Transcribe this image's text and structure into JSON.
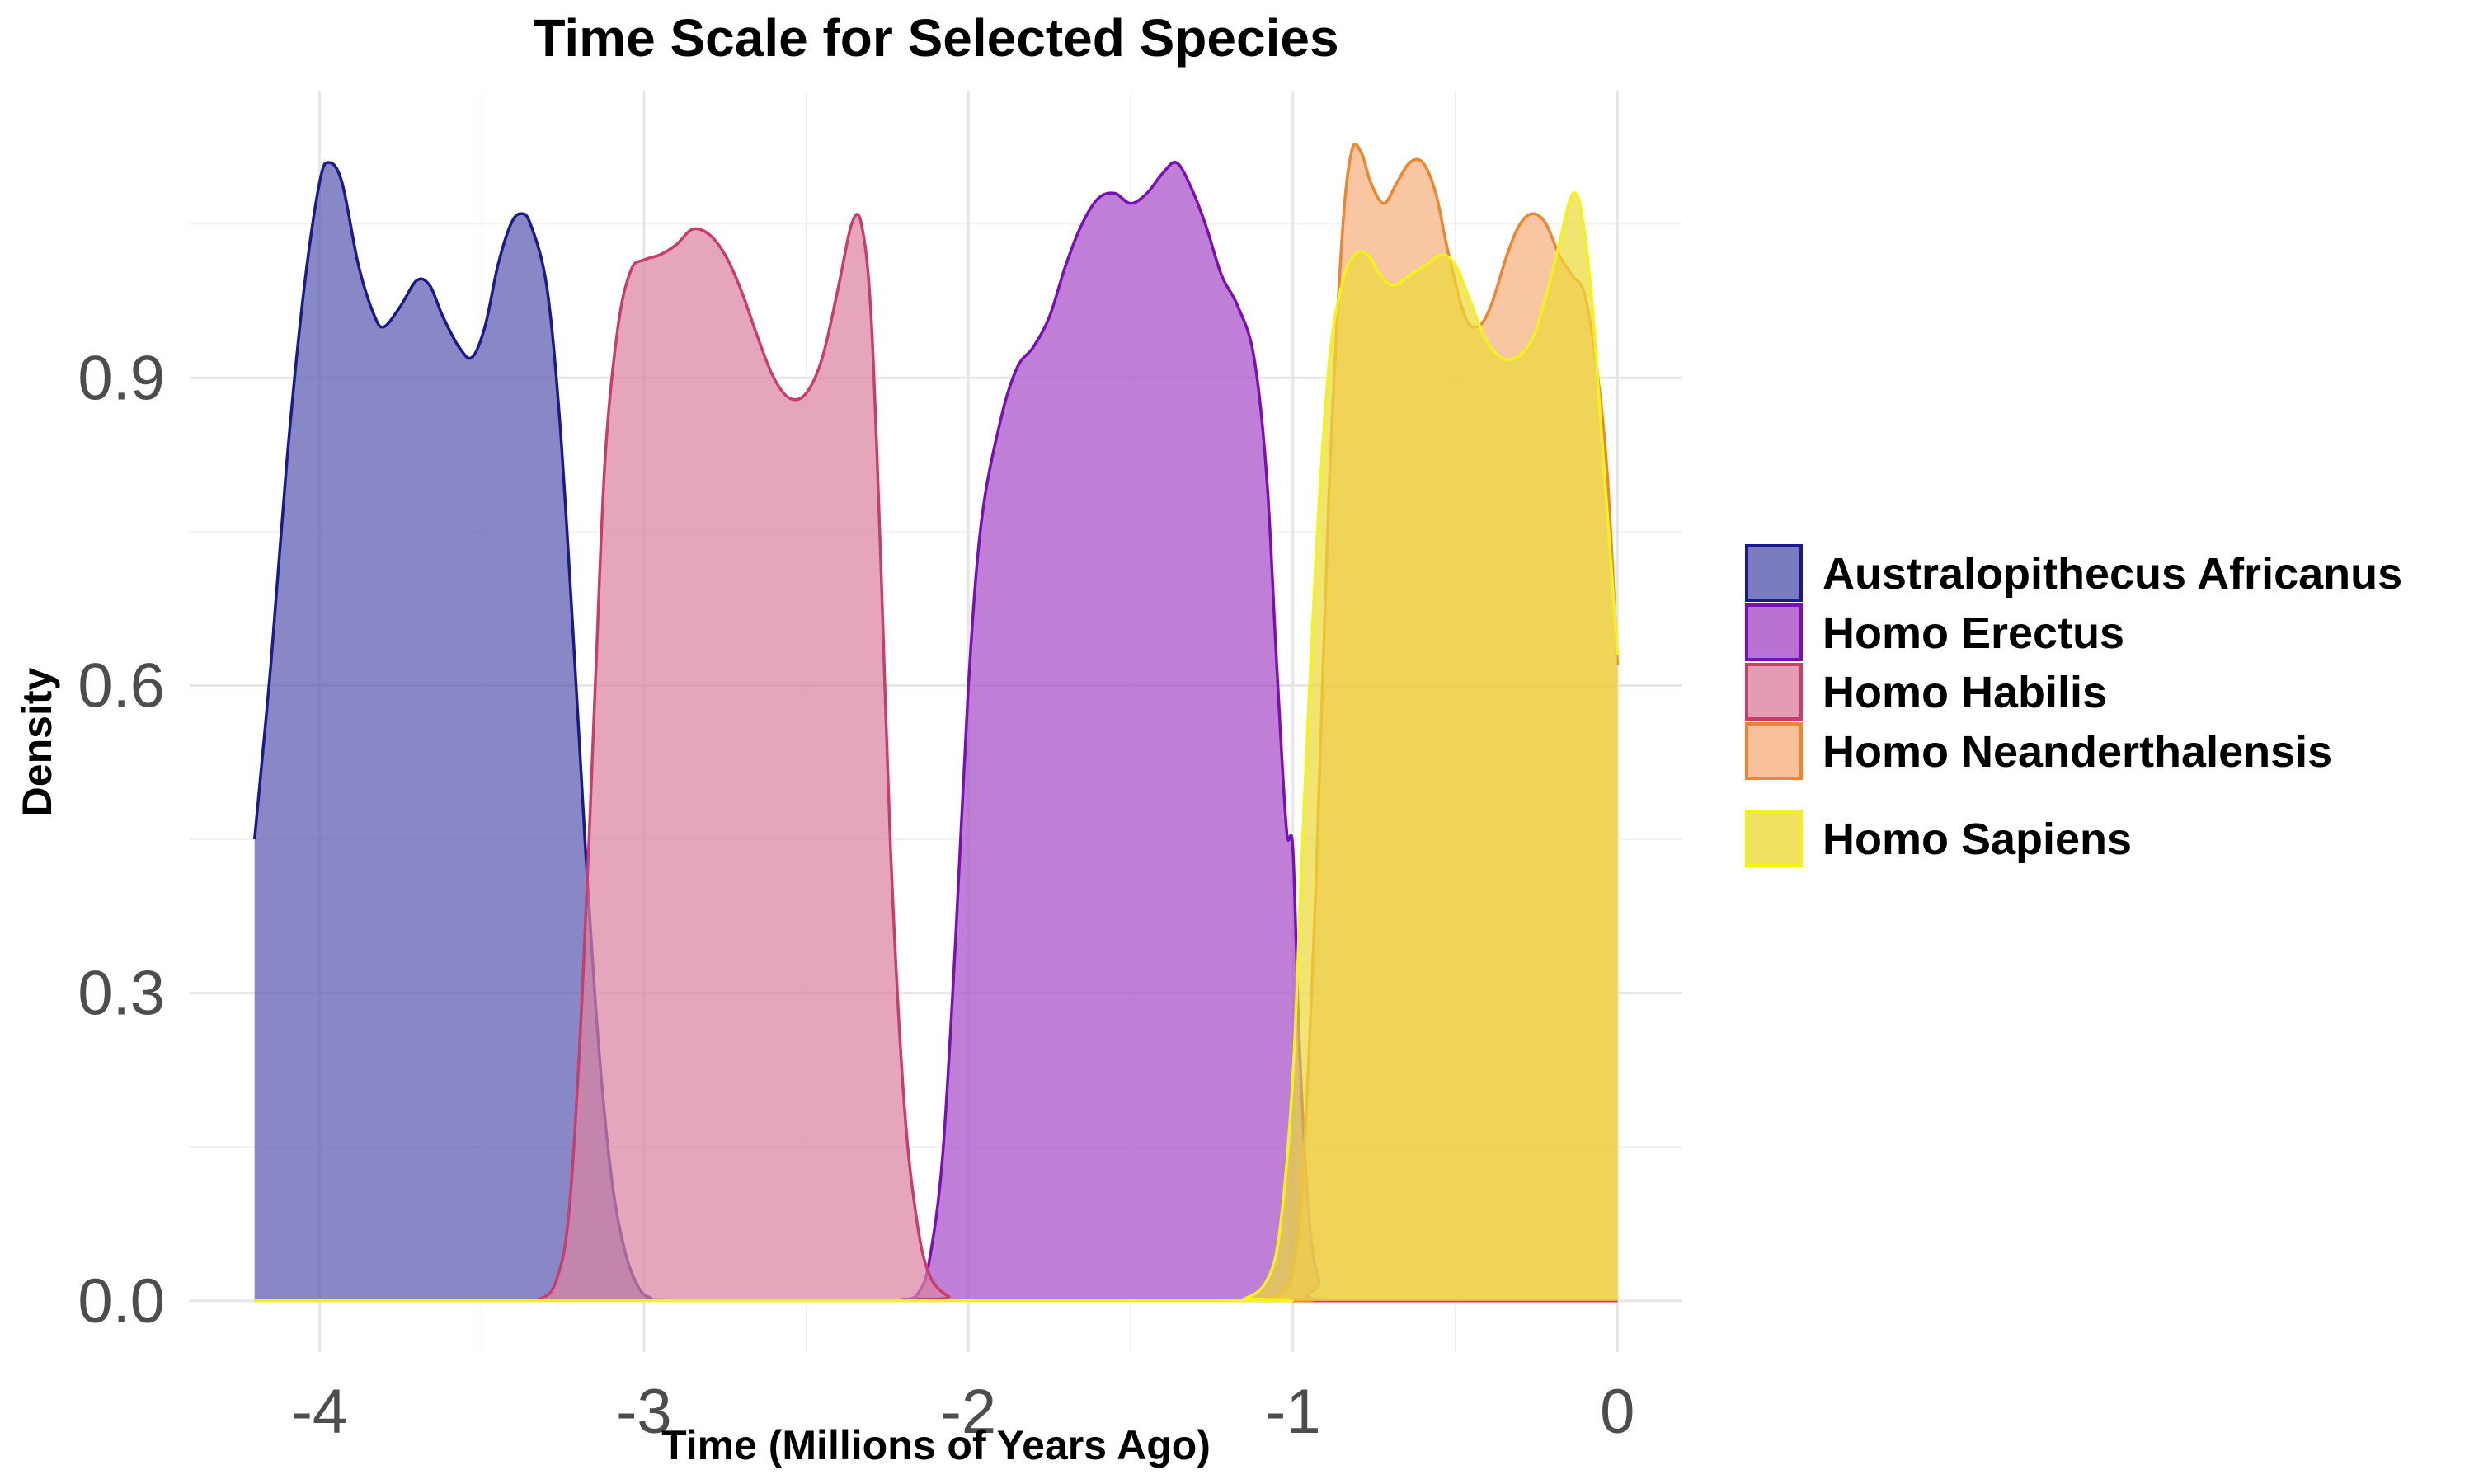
{
  "chart_data": {
    "type": "area",
    "title": "Time Scale for Selected Species",
    "xlabel": "Time (Millions of Years Ago)",
    "ylabel": "Density",
    "xlim": [
      -4.4,
      0.2
    ],
    "ylim": [
      -0.05,
      1.18
    ],
    "x_ticks": [
      -4,
      -3,
      -2,
      -1,
      0
    ],
    "x_tick_labels": [
      "-4",
      "-3",
      "-2",
      "-1",
      "0"
    ],
    "y_ticks": [
      0.0,
      0.3,
      0.6,
      0.9
    ],
    "y_tick_labels": [
      "0.0",
      "0.3",
      "0.6",
      "0.9"
    ],
    "grid": true,
    "legend_position": "right",
    "series": [
      {
        "name": "Australopithecus Africanus",
        "color": "#1a1a8c",
        "fill": "#5a5ab0",
        "points": [
          [
            -4.2,
            0.45
          ],
          [
            -4.15,
            0.62
          ],
          [
            -4.1,
            0.82
          ],
          [
            -4.05,
            0.98
          ],
          [
            -4.0,
            1.09
          ],
          [
            -3.97,
            1.11
          ],
          [
            -3.93,
            1.09
          ],
          [
            -3.88,
            1.01
          ],
          [
            -3.83,
            0.96
          ],
          [
            -3.8,
            0.95
          ],
          [
            -3.75,
            0.97
          ],
          [
            -3.7,
            0.995
          ],
          [
            -3.66,
            0.99
          ],
          [
            -3.62,
            0.96
          ],
          [
            -3.57,
            0.93
          ],
          [
            -3.53,
            0.92
          ],
          [
            -3.49,
            0.95
          ],
          [
            -3.45,
            1.01
          ],
          [
            -3.41,
            1.05
          ],
          [
            -3.38,
            1.06
          ],
          [
            -3.35,
            1.05
          ],
          [
            -3.3,
            0.99
          ],
          [
            -3.26,
            0.86
          ],
          [
            -3.22,
            0.66
          ],
          [
            -3.18,
            0.44
          ],
          [
            -3.14,
            0.25
          ],
          [
            -3.1,
            0.12
          ],
          [
            -3.06,
            0.05
          ],
          [
            -3.02,
            0.015
          ],
          [
            -2.98,
            0.003
          ],
          [
            -2.9,
            0.0
          ],
          [
            -2.0,
            0.0
          ],
          [
            0.0,
            0.0
          ]
        ]
      },
      {
        "name": "Homo Erectus",
        "color": "#7a0fb5",
        "fill": "#a84ec8",
        "points": [
          [
            -4.2,
            0.0
          ],
          [
            -2.4,
            0.0
          ],
          [
            -2.2,
            0.001
          ],
          [
            -2.15,
            0.01
          ],
          [
            -2.12,
            0.04
          ],
          [
            -2.08,
            0.14
          ],
          [
            -2.04,
            0.35
          ],
          [
            -2.0,
            0.6
          ],
          [
            -1.96,
            0.76
          ],
          [
            -1.9,
            0.86
          ],
          [
            -1.85,
            0.91
          ],
          [
            -1.8,
            0.93
          ],
          [
            -1.75,
            0.96
          ],
          [
            -1.7,
            1.01
          ],
          [
            -1.65,
            1.05
          ],
          [
            -1.6,
            1.075
          ],
          [
            -1.55,
            1.08
          ],
          [
            -1.5,
            1.07
          ],
          [
            -1.45,
            1.08
          ],
          [
            -1.4,
            1.1
          ],
          [
            -1.36,
            1.11
          ],
          [
            -1.32,
            1.09
          ],
          [
            -1.27,
            1.05
          ],
          [
            -1.22,
            1.0
          ],
          [
            -1.17,
            0.97
          ],
          [
            -1.12,
            0.92
          ],
          [
            -1.08,
            0.8
          ],
          [
            -1.05,
            0.62
          ],
          [
            -1.02,
            0.46
          ],
          [
            -1.0,
            0.44
          ],
          [
            -0.98,
            0.25
          ],
          [
            -0.95,
            0.08
          ],
          [
            -0.92,
            0.02
          ],
          [
            -0.88,
            0.0
          ],
          [
            0.0,
            0.0
          ]
        ]
      },
      {
        "name": "Homo Habilis",
        "color": "#c83c6e",
        "fill": "#db84a2",
        "points": [
          [
            -4.2,
            0.0
          ],
          [
            -3.4,
            0.0
          ],
          [
            -3.32,
            0.002
          ],
          [
            -3.27,
            0.02
          ],
          [
            -3.23,
            0.09
          ],
          [
            -3.19,
            0.3
          ],
          [
            -3.15,
            0.6
          ],
          [
            -3.12,
            0.82
          ],
          [
            -3.08,
            0.95
          ],
          [
            -3.04,
            1.005
          ],
          [
            -3.0,
            1.015
          ],
          [
            -2.95,
            1.02
          ],
          [
            -2.9,
            1.03
          ],
          [
            -2.85,
            1.045
          ],
          [
            -2.8,
            1.04
          ],
          [
            -2.75,
            1.02
          ],
          [
            -2.7,
            0.985
          ],
          [
            -2.65,
            0.94
          ],
          [
            -2.6,
            0.9
          ],
          [
            -2.55,
            0.88
          ],
          [
            -2.5,
            0.885
          ],
          [
            -2.45,
            0.92
          ],
          [
            -2.4,
            0.99
          ],
          [
            -2.36,
            1.05
          ],
          [
            -2.33,
            1.05
          ],
          [
            -2.3,
            0.96
          ],
          [
            -2.27,
            0.72
          ],
          [
            -2.24,
            0.44
          ],
          [
            -2.2,
            0.2
          ],
          [
            -2.16,
            0.08
          ],
          [
            -2.12,
            0.025
          ],
          [
            -2.06,
            0.004
          ],
          [
            -2.0,
            0.0
          ],
          [
            0.0,
            0.0
          ]
        ]
      },
      {
        "name": "Homo Neanderthalensis",
        "color": "#ee8530",
        "fill": "#f6b07e",
        "points": [
          [
            -4.2,
            0.0
          ],
          [
            -1.2,
            0.0
          ],
          [
            -1.08,
            0.002
          ],
          [
            -1.03,
            0.01
          ],
          [
            -1.0,
            0.03
          ],
          [
            -0.97,
            0.12
          ],
          [
            -0.93,
            0.4
          ],
          [
            -0.89,
            0.78
          ],
          [
            -0.85,
            1.03
          ],
          [
            -0.82,
            1.12
          ],
          [
            -0.79,
            1.12
          ],
          [
            -0.76,
            1.09
          ],
          [
            -0.72,
            1.07
          ],
          [
            -0.68,
            1.09
          ],
          [
            -0.64,
            1.11
          ],
          [
            -0.6,
            1.11
          ],
          [
            -0.56,
            1.08
          ],
          [
            -0.52,
            1.02
          ],
          [
            -0.47,
            0.96
          ],
          [
            -0.43,
            0.95
          ],
          [
            -0.39,
            0.97
          ],
          [
            -0.34,
            1.02
          ],
          [
            -0.3,
            1.05
          ],
          [
            -0.26,
            1.06
          ],
          [
            -0.22,
            1.05
          ],
          [
            -0.18,
            1.02
          ],
          [
            -0.14,
            1.0
          ],
          [
            -0.1,
            0.98
          ],
          [
            -0.06,
            0.9
          ],
          [
            -0.03,
            0.8
          ],
          [
            0.0,
            0.62
          ]
        ]
      },
      {
        "name": "Homo Sapiens",
        "color": "#f2f21e",
        "fill": "#ecd93a",
        "points": [
          [
            -4.2,
            0.0
          ],
          [
            -1.25,
            0.0
          ],
          [
            -1.15,
            0.002
          ],
          [
            -1.08,
            0.02
          ],
          [
            -1.04,
            0.07
          ],
          [
            -1.0,
            0.22
          ],
          [
            -0.97,
            0.45
          ],
          [
            -0.93,
            0.72
          ],
          [
            -0.89,
            0.91
          ],
          [
            -0.85,
            0.99
          ],
          [
            -0.81,
            1.02
          ],
          [
            -0.77,
            1.02
          ],
          [
            -0.73,
            1.0
          ],
          [
            -0.69,
            0.99
          ],
          [
            -0.64,
            1.0
          ],
          [
            -0.59,
            1.01
          ],
          [
            -0.54,
            1.02
          ],
          [
            -0.5,
            1.01
          ],
          [
            -0.46,
            0.98
          ],
          [
            -0.41,
            0.94
          ],
          [
            -0.36,
            0.92
          ],
          [
            -0.31,
            0.92
          ],
          [
            -0.26,
            0.94
          ],
          [
            -0.22,
            0.98
          ],
          [
            -0.18,
            1.03
          ],
          [
            -0.15,
            1.07
          ],
          [
            -0.13,
            1.08
          ],
          [
            -0.11,
            1.06
          ],
          [
            -0.08,
            0.98
          ],
          [
            -0.05,
            0.85
          ],
          [
            -0.02,
            0.72
          ],
          [
            0.0,
            0.63
          ]
        ]
      }
    ]
  }
}
